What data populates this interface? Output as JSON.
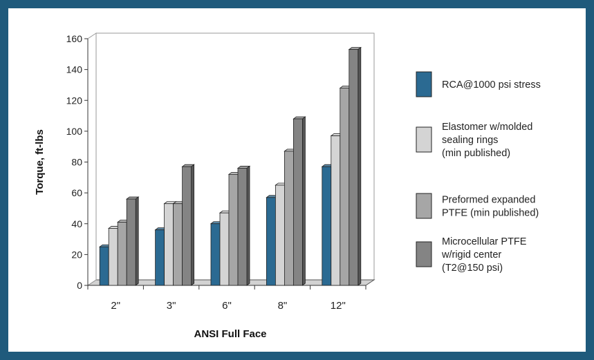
{
  "chart_data": {
    "type": "bar",
    "title": "",
    "xlabel": "ANSI Full Face",
    "ylabel": "Torque, ft-lbs",
    "ylim": [
      0,
      160
    ],
    "yticks": [
      0,
      20,
      40,
      60,
      80,
      100,
      120,
      140,
      160
    ],
    "categories": [
      "2\"",
      "3\"",
      "6\"",
      "8\"",
      "12\""
    ],
    "grid": false,
    "legend_position": "right",
    "series": [
      {
        "name": "RCA@1000 psi stress",
        "values": [
          25,
          36,
          40,
          57,
          77
        ],
        "color": "#2b6a92"
      },
      {
        "name": "Elastomer w/molded sealing rings (min published)",
        "values": [
          37,
          53,
          47,
          65,
          97
        ],
        "color": "#d4d4d4"
      },
      {
        "name": "Preformed expanded PTFE (min published)",
        "values": [
          41,
          53,
          72,
          87,
          128
        ],
        "color": "#a6a6a6"
      },
      {
        "name": "Microcellular PTFE w/rigid center (T2@150 psi)",
        "values": [
          56,
          77,
          76,
          108,
          153
        ],
        "color": "#848484"
      }
    ],
    "legend_lines": [
      [
        "RCA@1000 psi stress"
      ],
      [
        "Elastomer w/molded",
        "sealing rings",
        "(min published)"
      ],
      [
        "Preformed expanded",
        "PTFE (min published)"
      ],
      [
        "Microcellular PTFE",
        "w/rigid center",
        "(T2@150 psi)"
      ]
    ]
  }
}
